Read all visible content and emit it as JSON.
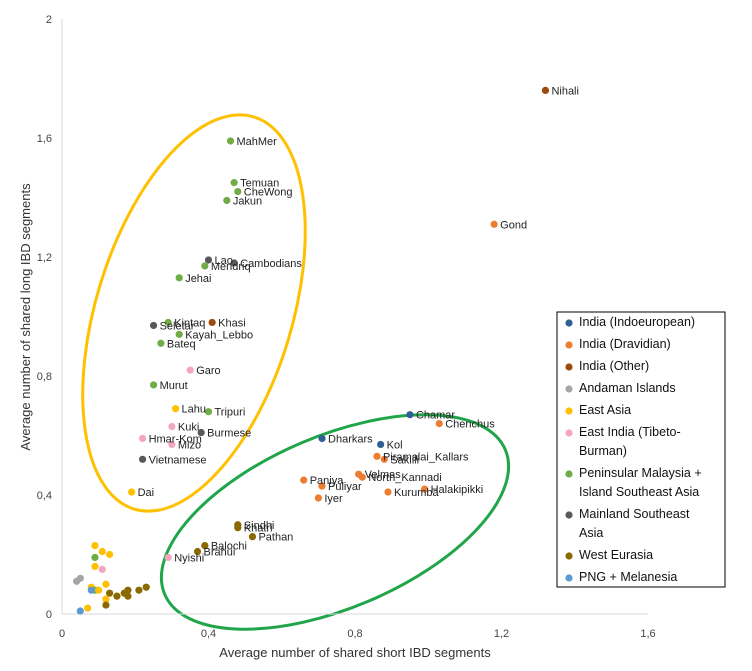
{
  "chart_data": {
    "type": "scatter",
    "title": "",
    "xlabel": "Average number  of shared short IBD segments",
    "ylabel": "Average number  of shared long IBD segments",
    "xlim": [
      0,
      1.6
    ],
    "ylim": [
      0,
      2
    ],
    "xticks": [
      "0",
      "0,4",
      "0,8",
      "1,2",
      "1,6"
    ],
    "yticks": [
      "0",
      "0,4",
      "0,8",
      "1,2",
      "1,6",
      "2"
    ],
    "xtick_values": [
      0,
      0.4,
      0.8,
      1.2,
      1.6
    ],
    "ytick_values": [
      0,
      0.4,
      0.8,
      1.2,
      1.6,
      2
    ],
    "grid": false,
    "legend_position": "right",
    "groups": [
      {
        "name": "India (Indoeuropean)",
        "color": "#2e5f95"
      },
      {
        "name": "India (Dravidian)",
        "color": "#ed7d31"
      },
      {
        "name": "India (Other)",
        "color": "#9c4a0e"
      },
      {
        "name": "Andaman Islands",
        "color": "#a5a5a5"
      },
      {
        "name": "East Asia",
        "color": "#ffc000"
      },
      {
        "name": "East India (Tibeto-Burman)",
        "color": "#f4a6c0"
      },
      {
        "name": "Peninsular Malaysia + Island Southeast Asia",
        "color": "#70ad47"
      },
      {
        "name": "Mainland Southeast Asia",
        "color": "#595959"
      },
      {
        "name": "West Eurasia",
        "color": "#8a6a00"
      },
      {
        "name": "PNG + Melanesia",
        "color": "#5b9bd5"
      }
    ],
    "legend_lines": [
      [
        "India (Indoeuropean)"
      ],
      [
        "India (Dravidian)"
      ],
      [
        "India (Other)"
      ],
      [
        "Andaman Islands"
      ],
      [
        "East Asia"
      ],
      [
        "East India (Tibeto-",
        "Burman)"
      ],
      [
        "Peninsular Malaysia +",
        "Island Southeast Asia"
      ],
      [
        "Mainland Southeast",
        "Asia"
      ],
      [
        "West Eurasia"
      ],
      [
        "PNG + Melanesia"
      ]
    ],
    "points": [
      {
        "x": 1.32,
        "y": 1.76,
        "g": 2,
        "label": "Nihali"
      },
      {
        "x": 1.18,
        "y": 1.31,
        "g": 1,
        "label": "Gond"
      },
      {
        "x": 0.46,
        "y": 1.59,
        "g": 6,
        "label": "MahMer"
      },
      {
        "x": 0.47,
        "y": 1.45,
        "g": 6,
        "label": "Temuan"
      },
      {
        "x": 0.48,
        "y": 1.42,
        "g": 6,
        "label": "CheWong"
      },
      {
        "x": 0.45,
        "y": 1.39,
        "g": 6,
        "label": "Jakun"
      },
      {
        "x": 0.4,
        "y": 1.19,
        "g": 7,
        "label": "Lao"
      },
      {
        "x": 0.47,
        "y": 1.18,
        "g": 7,
        "label": "Cambodians"
      },
      {
        "x": 0.39,
        "y": 1.17,
        "g": 6,
        "label": "Mendriq"
      },
      {
        "x": 0.32,
        "y": 1.13,
        "g": 6,
        "label": "Jehai"
      },
      {
        "x": 0.41,
        "y": 0.98,
        "g": 2,
        "label": "Khasi"
      },
      {
        "x": 0.29,
        "y": 0.98,
        "g": 6,
        "label": "Kintaq"
      },
      {
        "x": 0.25,
        "y": 0.97,
        "g": 7,
        "label": "Seletar"
      },
      {
        "x": 0.32,
        "y": 0.94,
        "g": 6,
        "label": "Kayah_Lebbo"
      },
      {
        "x": 0.27,
        "y": 0.91,
        "g": 6,
        "label": "Bateq"
      },
      {
        "x": 0.35,
        "y": 0.82,
        "g": 5,
        "label": "Garo"
      },
      {
        "x": 0.25,
        "y": 0.77,
        "g": 6,
        "label": "Murut"
      },
      {
        "x": 0.31,
        "y": 0.69,
        "g": 4,
        "label": "Lahu"
      },
      {
        "x": 0.4,
        "y": 0.68,
        "g": 6,
        "label": "Tripuri"
      },
      {
        "x": 0.3,
        "y": 0.63,
        "g": 5,
        "label": "Kuki"
      },
      {
        "x": 0.38,
        "y": 0.61,
        "g": 7,
        "label": "Burmese"
      },
      {
        "x": 0.22,
        "y": 0.59,
        "g": 5,
        "label": "Hmar-Kom"
      },
      {
        "x": 0.3,
        "y": 0.57,
        "g": 5,
        "label": "Mizo"
      },
      {
        "x": 0.22,
        "y": 0.52,
        "g": 7,
        "label": "Vietnamese"
      },
      {
        "x": 0.19,
        "y": 0.41,
        "g": 4,
        "label": "Dai"
      },
      {
        "x": 0.95,
        "y": 0.67,
        "g": 0,
        "label": "Chamar"
      },
      {
        "x": 1.03,
        "y": 0.64,
        "g": 1,
        "label": "Chenchus"
      },
      {
        "x": 0.71,
        "y": 0.59,
        "g": 0,
        "label": "Dharkars"
      },
      {
        "x": 0.87,
        "y": 0.57,
        "g": 0,
        "label": "Kol"
      },
      {
        "x": 0.86,
        "y": 0.53,
        "g": 1,
        "label": "Piramalai_Kallars"
      },
      {
        "x": 0.88,
        "y": 0.52,
        "g": 1,
        "label": "Sakilli"
      },
      {
        "x": 0.81,
        "y": 0.47,
        "g": 1,
        "label": "Velmas"
      },
      {
        "x": 0.82,
        "y": 0.46,
        "g": 1,
        "label": "North_Kannadi"
      },
      {
        "x": 0.66,
        "y": 0.45,
        "g": 1,
        "label": "Paniya"
      },
      {
        "x": 0.71,
        "y": 0.43,
        "g": 1,
        "label": "Puliyar"
      },
      {
        "x": 0.99,
        "y": 0.42,
        "g": 1,
        "label": "Halakipikki"
      },
      {
        "x": 0.89,
        "y": 0.41,
        "g": 1,
        "label": "Kurumba"
      },
      {
        "x": 0.7,
        "y": 0.39,
        "g": 1,
        "label": "Iyer"
      },
      {
        "x": 0.48,
        "y": 0.3,
        "g": 8,
        "label": "Sindhi"
      },
      {
        "x": 0.48,
        "y": 0.29,
        "g": 8,
        "label": "Khatri"
      },
      {
        "x": 0.52,
        "y": 0.26,
        "g": 8,
        "label": "Pathan"
      },
      {
        "x": 0.39,
        "y": 0.23,
        "g": 8,
        "label": "Balochi"
      },
      {
        "x": 0.37,
        "y": 0.21,
        "g": 8,
        "label": "Brahui"
      },
      {
        "x": 0.29,
        "y": 0.19,
        "g": 5,
        "label": "Nyishi"
      },
      {
        "x": 0.09,
        "y": 0.23,
        "g": 4,
        "label": ""
      },
      {
        "x": 0.11,
        "y": 0.21,
        "g": 4,
        "label": ""
      },
      {
        "x": 0.13,
        "y": 0.2,
        "g": 4,
        "label": ""
      },
      {
        "x": 0.09,
        "y": 0.19,
        "g": 6,
        "label": ""
      },
      {
        "x": 0.09,
        "y": 0.16,
        "g": 4,
        "label": ""
      },
      {
        "x": 0.11,
        "y": 0.15,
        "g": 5,
        "label": ""
      },
      {
        "x": 0.04,
        "y": 0.11,
        "g": 3,
        "label": ""
      },
      {
        "x": 0.05,
        "y": 0.12,
        "g": 3,
        "label": ""
      },
      {
        "x": 0.12,
        "y": 0.1,
        "g": 4,
        "label": ""
      },
      {
        "x": 0.08,
        "y": 0.09,
        "g": 4,
        "label": ""
      },
      {
        "x": 0.09,
        "y": 0.08,
        "g": 6,
        "label": ""
      },
      {
        "x": 0.08,
        "y": 0.08,
        "g": 9,
        "label": ""
      },
      {
        "x": 0.1,
        "y": 0.08,
        "g": 4,
        "label": ""
      },
      {
        "x": 0.13,
        "y": 0.07,
        "g": 8,
        "label": ""
      },
      {
        "x": 0.15,
        "y": 0.06,
        "g": 8,
        "label": ""
      },
      {
        "x": 0.17,
        "y": 0.07,
        "g": 8,
        "label": ""
      },
      {
        "x": 0.18,
        "y": 0.06,
        "g": 8,
        "label": ""
      },
      {
        "x": 0.18,
        "y": 0.08,
        "g": 8,
        "label": ""
      },
      {
        "x": 0.21,
        "y": 0.08,
        "g": 8,
        "label": ""
      },
      {
        "x": 0.23,
        "y": 0.09,
        "g": 8,
        "label": ""
      },
      {
        "x": 0.12,
        "y": 0.05,
        "g": 4,
        "label": ""
      },
      {
        "x": 0.12,
        "y": 0.03,
        "g": 8,
        "label": ""
      },
      {
        "x": 0.07,
        "y": 0.02,
        "g": 4,
        "label": ""
      },
      {
        "x": 0.05,
        "y": 0.01,
        "g": 9,
        "label": ""
      }
    ]
  }
}
